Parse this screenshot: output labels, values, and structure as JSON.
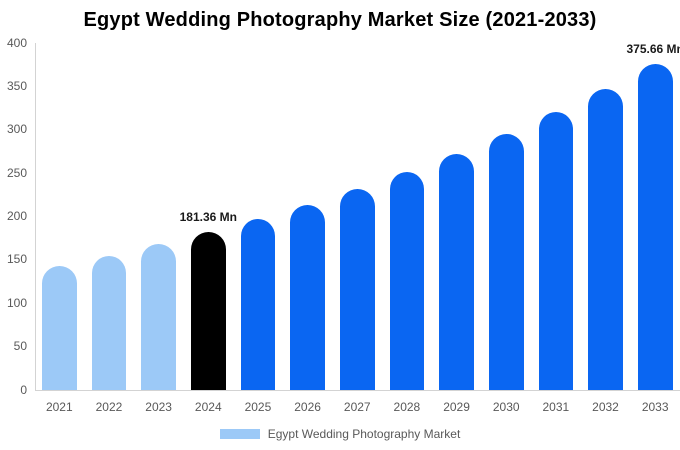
{
  "chart_data": {
    "type": "bar",
    "title": "Egypt Wedding Photography Market Size (2021-2033)",
    "categories": [
      "2021",
      "2022",
      "2023",
      "2024",
      "2025",
      "2026",
      "2027",
      "2028",
      "2029",
      "2030",
      "2031",
      "2032",
      "2033"
    ],
    "values": [
      142.27,
      154.26,
      167.26,
      181.36,
      196.64,
      213.22,
      231.19,
      250.67,
      271.79,
      294.69,
      319.52,
      346.45,
      375.66
    ],
    "bar_roles": [
      "past",
      "past",
      "past",
      "current",
      "future",
      "future",
      "future",
      "future",
      "future",
      "future",
      "future",
      "future",
      "future"
    ],
    "role_colors": {
      "past": "#9cc9f7",
      "current": "#000000",
      "future": "#0a66f2"
    },
    "ylim": [
      0,
      400
    ],
    "yticks": [
      0,
      50,
      100,
      150,
      200,
      250,
      300,
      350,
      400
    ],
    "ytick_labels": [
      "0",
      "50",
      "100",
      "150",
      "200",
      "250",
      "300",
      "350",
      "400"
    ],
    "annotations": [
      {
        "index": 3,
        "text": "181.36 Mn"
      },
      {
        "index": 12,
        "text": "375.66 Mn"
      }
    ],
    "legend": [
      {
        "label": "Egypt Wedding Photography Market",
        "color": "#9cc9f7"
      }
    ],
    "xlabel": "",
    "ylabel": "",
    "grid": false,
    "legend_position": "bottom",
    "colors": {
      "axis_line": "#d3d3d3",
      "tick_label": "#595959",
      "annotation": "#1a1a1a",
      "title": "#000000",
      "legend_label": "#595959"
    }
  }
}
